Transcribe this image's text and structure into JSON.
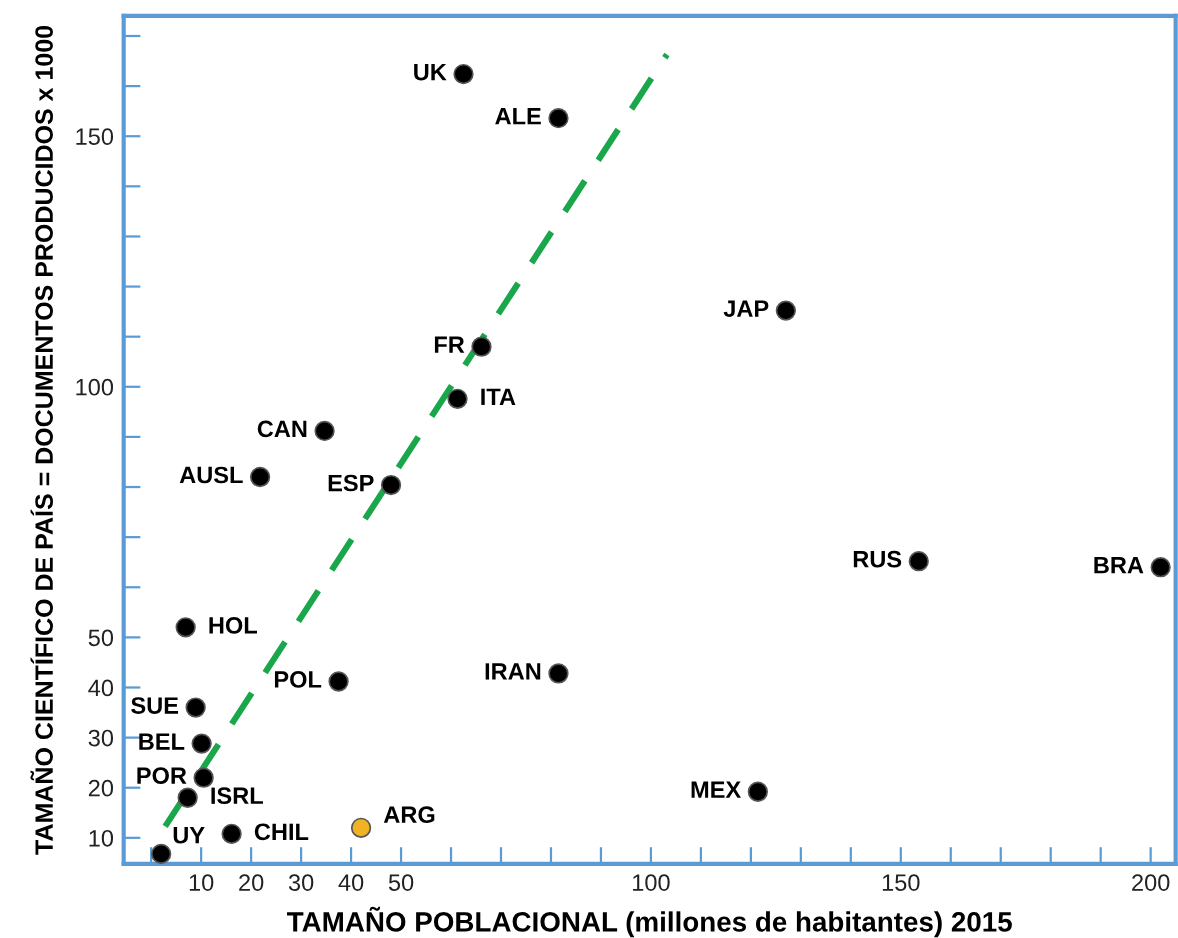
{
  "chart_data": {
    "type": "scatter",
    "xlabel": "TAMAÑO POBLACIONAL (millones de habitantes) 2015",
    "ylabel": "TAMAÑO CIENTÍFICO DE PAÍS = DOCUMENTOS PRODUCIDOS x 1000",
    "xlim": [
      -5.5,
      205
    ],
    "ylim": [
      4.8,
      174
    ],
    "xticks": [
      {
        "value": 0,
        "label": null
      },
      10,
      20,
      30,
      40,
      50,
      {
        "value": 60,
        "label": null
      },
      {
        "value": 70,
        "label": null
      },
      {
        "value": 80,
        "label": null
      },
      {
        "value": 90,
        "label": null
      },
      100,
      {
        "value": 110,
        "label": null
      },
      {
        "value": 120,
        "label": null
      },
      {
        "value": 130,
        "label": null
      },
      {
        "value": 140,
        "label": null
      },
      150,
      {
        "value": 160,
        "label": null
      },
      {
        "value": 170,
        "label": null
      },
      {
        "value": 180,
        "label": null
      },
      {
        "value": 190,
        "label": null
      },
      200
    ],
    "yticks": [
      10,
      20,
      30,
      40,
      50,
      {
        "value": 60,
        "label": null
      },
      {
        "value": 70,
        "label": null
      },
      {
        "value": 80,
        "label": null
      },
      {
        "value": 90,
        "label": null
      },
      100,
      {
        "value": 110,
        "label": null
      },
      {
        "value": 120,
        "label": null
      },
      {
        "value": 130,
        "label": null
      },
      {
        "value": 140,
        "label": null
      },
      150,
      {
        "value": 160,
        "label": null
      },
      {
        "value": 170,
        "label": null
      }
    ],
    "grid": false,
    "legend": false,
    "series": [
      {
        "marker": "circle",
        "x": [
          62.5,
          81.5,
          127,
          66.1,
          61.3,
          34.7,
          21.8,
          48,
          153.6,
          202,
          6.9,
          37.5,
          81.5,
          8.9,
          10.1,
          10.5,
          7.3,
          16.1,
          42,
          121.4,
          2.0
        ],
        "values": [
          162.4,
          153.6,
          115.2,
          108,
          97.6,
          91.2,
          82,
          80.4,
          65.2,
          64,
          52,
          41.2,
          42.8,
          36,
          28.8,
          22,
          18,
          10.8,
          12,
          19.2,
          6.8
        ],
        "colors": [
          "#000000",
          "#000000",
          "#000000",
          "#000000",
          "#000000",
          "#000000",
          "#000000",
          "#000000",
          "#000000",
          "#000000",
          "#000000",
          "#000000",
          "#000000",
          "#000000",
          "#000000",
          "#000000",
          "#000000",
          "#000000",
          "#f0b323",
          "#000000",
          "#000000"
        ]
      },
      {
        "type": "line",
        "marker": "none",
        "line_style": "dashed",
        "color": "#1aa64a",
        "x": [
          2.8,
          103.2
        ],
        "values": [
          12.3,
          166.3
        ]
      }
    ],
    "annotations": [
      {
        "text": "UK",
        "x": 62.5,
        "y": 162.4
      },
      {
        "text": "ALE",
        "x": 81.5,
        "y": 153.6
      },
      {
        "text": "JAP",
        "x": 127,
        "y": 115.2
      },
      {
        "text": "FR",
        "x": 66.1,
        "y": 108
      },
      {
        "text": "ITA",
        "x": 61.3,
        "y": 97.6
      },
      {
        "text": "CAN",
        "x": 34.7,
        "y": 91.2
      },
      {
        "text": "AUSL",
        "x": 21.8,
        "y": 82
      },
      {
        "text": "ESP",
        "x": 48,
        "y": 80.4
      },
      {
        "text": "RUS",
        "x": 153.6,
        "y": 65.2
      },
      {
        "text": "BRA",
        "x": 202,
        "y": 64
      },
      {
        "text": "HOL",
        "x": 6.9,
        "y": 52
      },
      {
        "text": "POL",
        "x": 37.5,
        "y": 41.2
      },
      {
        "text": "IRAN",
        "x": 81.5,
        "y": 42.8
      },
      {
        "text": "SUE",
        "x": 8.9,
        "y": 36
      },
      {
        "text": "BEL",
        "x": 10.1,
        "y": 28.8
      },
      {
        "text": "POR",
        "x": 10.5,
        "y": 22
      },
      {
        "text": "ISRL",
        "x": 7.3,
        "y": 18
      },
      {
        "text": "CHIL",
        "x": 16.1,
        "y": 10.8
      },
      {
        "text": "ARG",
        "x": 42,
        "y": 12
      },
      {
        "text": "MEX",
        "x": 121.4,
        "y": 19.2
      },
      {
        "text": "UY",
        "x": 2.0,
        "y": 6.8
      }
    ]
  }
}
